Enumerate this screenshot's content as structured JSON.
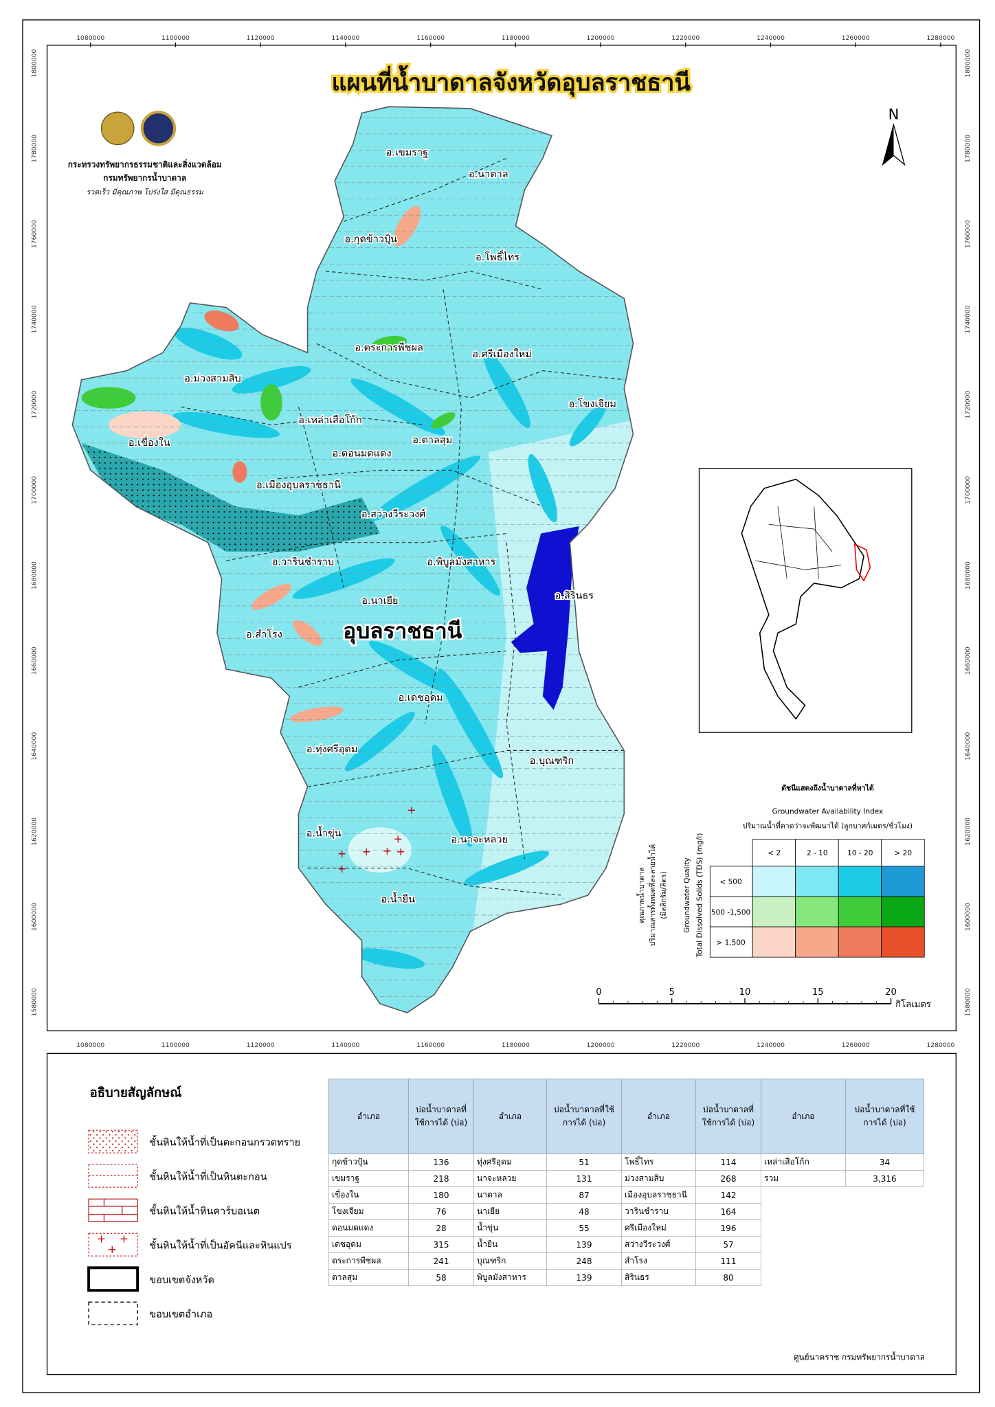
{
  "header": {
    "title": "แผนที่น้ำบาดาลจังหวัดอุบลราชธานี",
    "org": [
      "กระทรวงทรัพยากรธรรมชาติและสิ่งแวดล้อม",
      "กรมทรัพยากรน้ำบาดาล",
      "รวดเร็ว มีคุณภาพ โปร่งใส มีคุณธรรม"
    ]
  },
  "north": "N",
  "grid": {
    "x_labels": [
      "1080000",
      "1100000",
      "1120000",
      "1140000",
      "1160000",
      "1180000",
      "1200000",
      "1220000",
      "1240000",
      "1260000",
      "1280000"
    ],
    "y_labels": [
      "1800000",
      "1780000",
      "1760000",
      "1740000",
      "1720000",
      "1700000",
      "1680000",
      "1660000",
      "1640000",
      "1620000",
      "1600000",
      "1580000"
    ]
  },
  "districts": [
    "อ.เขมราฐ",
    "อ.นาตาล",
    "อ.กุดข้าวปุ้น",
    "อ.โพธิ์ไทร",
    "อ.ตระการพืชผล",
    "อ.ศรีเมืองใหม่",
    "อ.ม่วงสามสิบ",
    "อ.โขงเจียม",
    "อ.เหล่าเสือโก้ก",
    "อ.เขื่องใน",
    "อ.ตาลสุม",
    "อ.ดอนมดแดง",
    "อ.เมืองอุบลราชธานี",
    "อ.สว่างวีระวงศ์",
    "อ.วารินชำราบ",
    "อ.พิบูลมังสาหาร",
    "อ.สิรินธร",
    "อ.นาเยีย",
    "อ.สำโรง",
    "อ.เดชอุดม",
    "อ.ทุ่งศรีอุดม",
    "อ.บุณฑริก",
    "อ.น้ำขุ่น",
    "อ.นาจะหลวย",
    "อ.น้ำยืน"
  ],
  "province_label": "อุบลราชธานี",
  "availability_legend": {
    "title_th": "ดัชนีแสดงถึงน้ำบาดาลที่หาได้",
    "title_en": "Groundwater Availability Index",
    "subtitle": "ปริมาณน้ำที่คาดว่าจะพัฒนาได้ (ลูกบาศก์เมตร/ชั่วโมง)",
    "columns": [
      "< 2",
      "2 - 10",
      "10 - 20",
      "> 20"
    ],
    "rows": [
      "< 500",
      "500 -1,500",
      "> 1,500"
    ],
    "colors": [
      [
        "#c8f6fb",
        "#7ee9f5",
        "#1ecbe6",
        "#1e9ad6"
      ],
      [
        "#c8f0c0",
        "#86e87a",
        "#3fcc3a",
        "#0aa814"
      ],
      [
        "#fbd5c6",
        "#f6a88a",
        "#f07a5e",
        "#e8502a"
      ]
    ],
    "axis_en": [
      "Groundwater Quality",
      "Total Dissolved Solids (TDS) (mg/l)"
    ],
    "axis_th": [
      "คุณภาพน้ำบาดาล",
      "ปริมาณสารทั้งหมดที่ละลายน้ำได้",
      "(มิลลิกรัม/ลิตร)"
    ]
  },
  "scale_bar": {
    "ticks": [
      0,
      5,
      10,
      15,
      20
    ],
    "unit": "กิโลเมตร"
  },
  "symbol_legend": {
    "title": "อธิบายสัญลักษณ์",
    "items": [
      "ชั้นหินให้น้ำที่เป็นตะกอนกรวดทราย",
      "ชั้นหินให้น้ำที่เป็นหินตะกอน",
      "ชั้นหินให้น้ำหินคาร์บอเนต",
      "ชั้นหินให้น้ำที่เป็นอัคนีและหินแปร",
      "ขอบเขตจังหวัด",
      "ขอบเขตอำเภอ"
    ]
  },
  "table": {
    "headers": [
      "อำเภอ",
      "บ่อน้ำบาดาลที่ใช้การได้ (บ่อ)",
      "อำเภอ",
      "บ่อน้ำบาดาลที่ใช้การได้ (บ่อ)",
      "อำเภอ",
      "บ่อน้ำบาดาลที่ใช้การได้ (บ่อ)",
      "อำเภอ",
      "บ่อน้ำบาดาลที่ใช้การได้ (บ่อ)"
    ],
    "rows": [
      [
        "กุดข้าวปุ้น",
        136,
        "ทุ่งศรีอุดม",
        51,
        "โพธิ์ไทร",
        114,
        "เหล่าเสือโก้ก",
        34
      ],
      [
        "เขมราฐ",
        218,
        "นาจะหลวย",
        131,
        "ม่วงสามสิบ",
        268,
        "รวม",
        "3,316"
      ],
      [
        "เขื่องใน",
        180,
        "นาตาล",
        87,
        "เมืองอุบลราชธานี",
        142
      ],
      [
        "โขงเจียม",
        76,
        "นาเยีย",
        48,
        "วารินชำราบ",
        164
      ],
      [
        "ดอนมดแดง",
        28,
        "น้ำขุ่น",
        55,
        "ศรีเมืองใหม่",
        196
      ],
      [
        "เดชอุดม",
        315,
        "น้ำยืน",
        139,
        "สว่างวีระวงศ์",
        57
      ],
      [
        "ตระการพืชผล",
        241,
        "บุณฑริก",
        248,
        "สำโรง",
        111
      ],
      [
        "ตาลสุม",
        58,
        "พิบูลมังสาหาร",
        139,
        "สิรินธร",
        80
      ]
    ]
  },
  "footer": "ศูนย์นาคราช กรมทรัพยากรน้ำบาดาล"
}
